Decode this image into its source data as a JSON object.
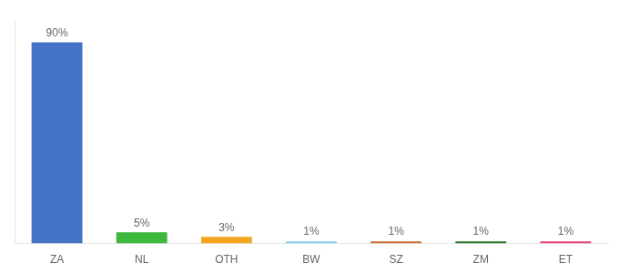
{
  "chart_data": {
    "type": "bar",
    "categories": [
      "ZA",
      "NL",
      "OTH",
      "BW",
      "SZ",
      "ZM",
      "ET"
    ],
    "values": [
      90,
      5,
      3,
      1,
      1,
      1,
      1
    ],
    "value_labels": [
      "90%",
      "5%",
      "3%",
      "1%",
      "1%",
      "1%",
      "1%"
    ],
    "colors": [
      "#4472c4",
      "#3db83d",
      "#f4a621",
      "#87ceeb",
      "#c87137",
      "#2d7a2d",
      "#e8457a"
    ],
    "ylim": [
      0,
      100
    ],
    "grid": false,
    "data_labels": true,
    "tick_labels": "x"
  }
}
